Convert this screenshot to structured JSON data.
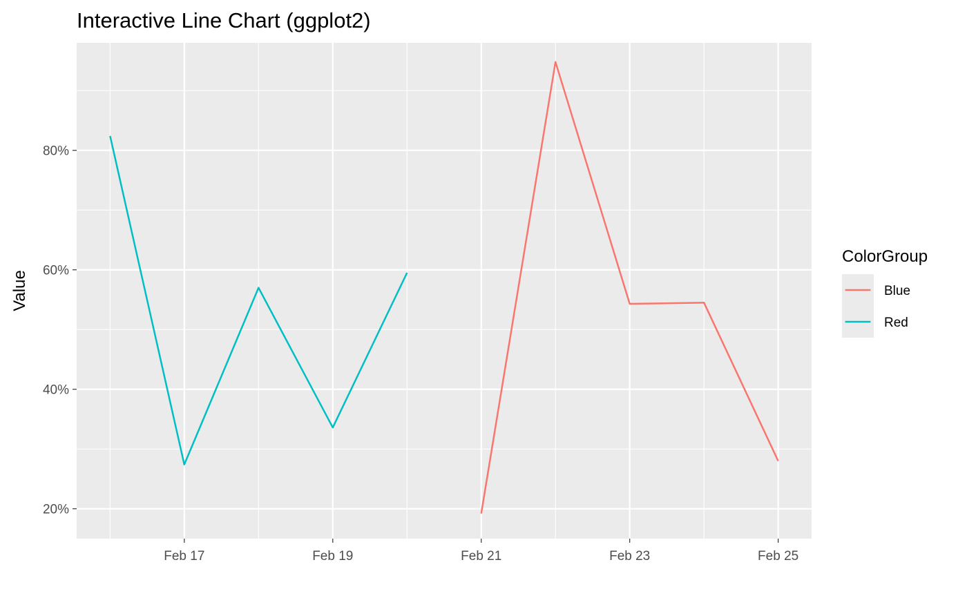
{
  "chart_data": {
    "type": "line",
    "title": "Interactive Line Chart (ggplot2)",
    "xlabel": "",
    "ylabel": "Value",
    "x_type": "date",
    "x_ticks": [
      "2024-02-17",
      "2024-02-19",
      "2024-02-21",
      "2024-02-23",
      "2024-02-25"
    ],
    "x_tick_labels": [
      "Feb 17",
      "Feb 19",
      "Feb 21",
      "Feb 23",
      "Feb 25"
    ],
    "xlim": [
      "2024-02-15",
      "2024-02-25"
    ],
    "y_ticks": [
      0.2,
      0.4,
      0.6,
      0.8
    ],
    "y_tick_labels": [
      "20%",
      "40%",
      "60%",
      "80%"
    ],
    "ylim": [
      0.15,
      0.98
    ],
    "y_format": "percent",
    "grid": true,
    "legend": {
      "title": "ColorGroup",
      "position": "right",
      "entries": [
        {
          "label": "Blue",
          "color": "#F8766D"
        },
        {
          "label": "Red",
          "color": "#00BFC4"
        }
      ]
    },
    "series": [
      {
        "name": "Red",
        "color": "#00BFC4",
        "x": [
          "2024-02-16",
          "2024-02-17",
          "2024-02-18",
          "2024-02-19",
          "2024-02-20"
        ],
        "y": [
          0.824,
          0.274,
          0.57,
          0.336,
          0.595
        ]
      },
      {
        "name": "Blue",
        "color": "#F8766D",
        "x": [
          "2024-02-21",
          "2024-02-22",
          "2024-02-23",
          "2024-02-24",
          "2024-02-25"
        ],
        "y": [
          0.192,
          0.948,
          0.543,
          0.545,
          0.28
        ]
      }
    ],
    "colors": {
      "panel_background": "#EBEBEB",
      "major_grid": "#FFFFFF",
      "minor_grid": "#F4F4F4",
      "tick_text": "#4D4D4D",
      "axis_tick": "#333333"
    }
  }
}
